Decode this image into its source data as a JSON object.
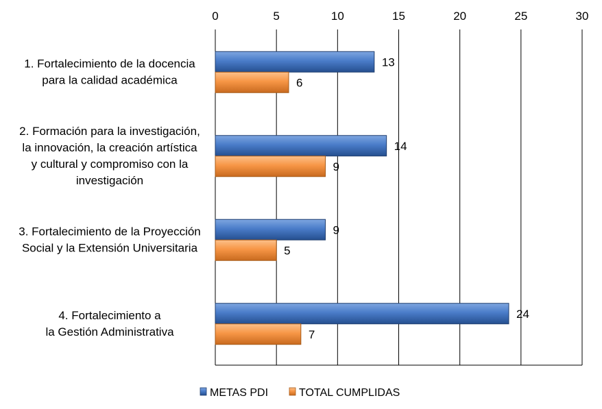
{
  "chart_data": {
    "type": "bar",
    "orientation": "horizontal",
    "title": "",
    "xlabel": "",
    "ylabel": "",
    "xlim": [
      0,
      30
    ],
    "x_ticks": [
      0,
      5,
      10,
      15,
      20,
      25,
      30
    ],
    "x_axis_position": "top",
    "grid": true,
    "legend_position": "bottom",
    "categories": [
      [
        "1. Fortalecimiento de la docencia",
        "para la calidad académica"
      ],
      [
        "2. Formación para la investigación,",
        "la innovación, la creación artística",
        "y cultural y compromiso con la",
        "investigación"
      ],
      [
        "3. Fortalecimiento de la Proyección",
        "Social y la Extensión Universitaria"
      ],
      [
        "4. Fortalecimiento a",
        "la Gestión Administrativa"
      ]
    ],
    "series": [
      {
        "name": "METAS PDI",
        "values": [
          13,
          14,
          9,
          24
        ],
        "color": "#4472C4"
      },
      {
        "name": "TOTAL CUMPLIDAS",
        "values": [
          6,
          9,
          5,
          7
        ],
        "color": "#F79646"
      }
    ]
  }
}
